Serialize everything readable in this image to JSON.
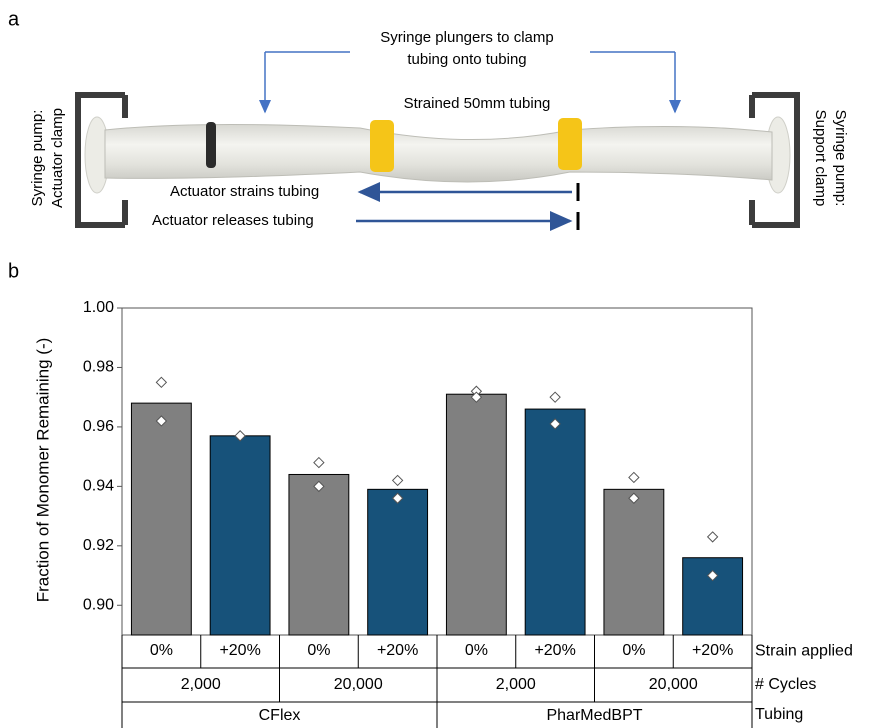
{
  "panel_a": {
    "panel_label": "a",
    "callout_lines": [
      "Syringe plungers to clamp",
      "tubing onto tubing"
    ],
    "strained_label": "Strained 50mm tubing",
    "strains_label": "Actuator strains tubing",
    "releases_label": "Actuator releases tubing",
    "left_clamp_lines": [
      "Syringe pump:",
      "Actuator clamp"
    ],
    "right_clamp_lines": [
      "Syringe pump:",
      "Support clamp"
    ]
  },
  "chart_data": {
    "type": "bar",
    "panel_label": "b",
    "y_label": "Fraction of Monomer Remaining (-)",
    "categories": [
      "0%",
      "+20%",
      "0%",
      "+20%",
      "0%",
      "+20%",
      "0%",
      "+20%"
    ],
    "values": [
      0.968,
      0.957,
      0.944,
      0.939,
      0.971,
      0.966,
      0.939,
      0.916
    ],
    "colors": [
      "#808080",
      "#17527a",
      "#808080",
      "#17527a",
      "#808080",
      "#17527a",
      "#808080",
      "#17527a"
    ],
    "replicates": [
      [
        0.975,
        0.962
      ],
      [
        0.957,
        0.957
      ],
      [
        0.948,
        0.94
      ],
      [
        0.942,
        0.936
      ],
      [
        0.972,
        0.97
      ],
      [
        0.97,
        0.961
      ],
      [
        0.943,
        0.936
      ],
      [
        0.923,
        0.91
      ]
    ],
    "cycles": [
      "2,000",
      "20,000",
      "2,000",
      "20,000"
    ],
    "tubing": [
      "CFlex",
      "PharMedBPT"
    ],
    "row_labels": [
      "Strain applied",
      "# Cycles",
      "Tubing"
    ],
    "ylim": [
      0.89,
      1.0
    ],
    "yticks": [
      {
        "value": 0.9,
        "label": "0.90"
      },
      0.92,
      0.94,
      0.96,
      0.98,
      {
        "value": 1.0,
        "label": "1.00"
      }
    ]
  }
}
